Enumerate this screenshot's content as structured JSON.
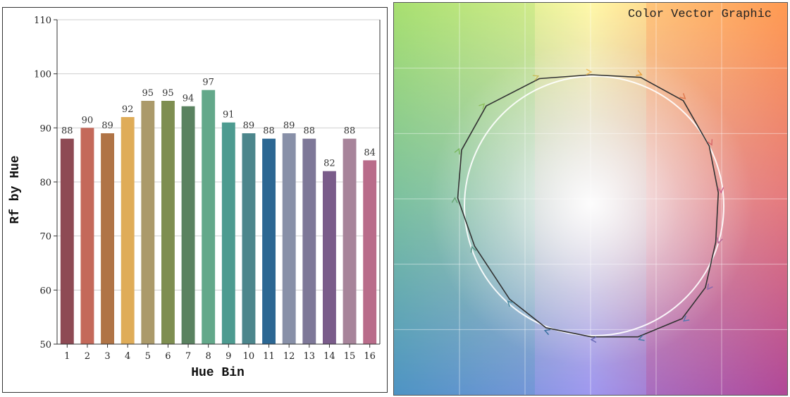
{
  "chart_data": [
    {
      "type": "bar",
      "title": "",
      "xlabel": "Hue Bin",
      "ylabel": "Rf by Hue",
      "ylim": [
        50,
        110
      ],
      "yticks": [
        50,
        60,
        70,
        80,
        90,
        100,
        110
      ],
      "grid": true,
      "categories": [
        "1",
        "2",
        "3",
        "4",
        "5",
        "6",
        "7",
        "8",
        "9",
        "10",
        "11",
        "12",
        "13",
        "14",
        "15",
        "16"
      ],
      "values": [
        88,
        90,
        89,
        92,
        95,
        95,
        94,
        97,
        91,
        89,
        88,
        89,
        88,
        82,
        88,
        84
      ],
      "colors": [
        "#8e4a54",
        "#c4695a",
        "#b07446",
        "#dfac58",
        "#ab9a6a",
        "#7e8e51",
        "#5a8260",
        "#63a88a",
        "#4d9b90",
        "#4c868c",
        "#2c6793",
        "#8890a8",
        "#7e7898",
        "#7a5c8a",
        "#a7849a",
        "#b96c8a"
      ]
    },
    {
      "type": "line",
      "title": "Color Vector Graphic",
      "grid": true,
      "reference_circle": true,
      "x": [
        0,
        0.38,
        0.71,
        0.91,
        0.98,
        0.96,
        0.88,
        0.7,
        0.36,
        0,
        -0.35,
        -0.63,
        -0.9,
        -1.03,
        -1.0,
        -0.81,
        -0.4,
        0
      ],
      "y": [
        1.0,
        0.98,
        0.8,
        0.45,
        0.09,
        -0.29,
        -0.64,
        -0.88,
        -1.02,
        -1.02,
        -0.95,
        -0.73,
        -0.32,
        0.05,
        0.42,
        0.76,
        0.97,
        1.0
      ]
    }
  ]
}
